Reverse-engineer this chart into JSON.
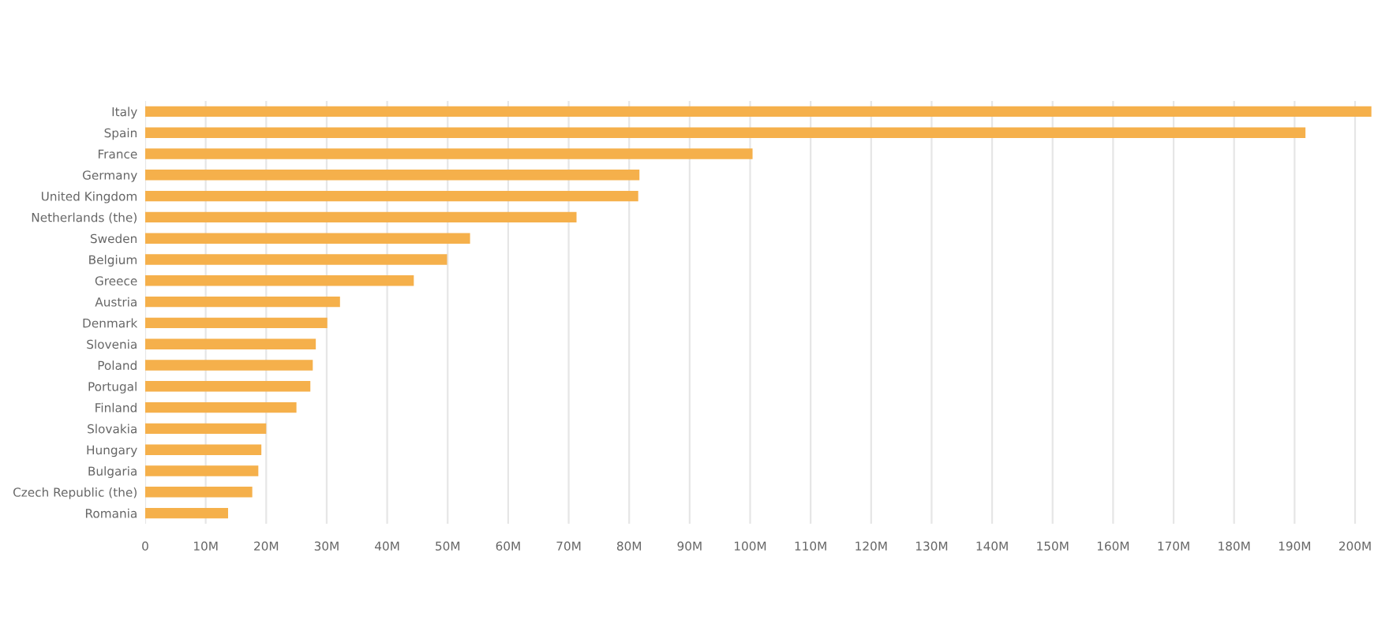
{
  "chart_data": {
    "type": "bar",
    "orientation": "horizontal",
    "categories": [
      "Italy",
      "Spain",
      "France",
      "Germany",
      "United Kingdom",
      "Netherlands (the)",
      "Sweden",
      "Belgium",
      "Greece",
      "Austria",
      "Denmark",
      "Slovenia",
      "Poland",
      "Portugal",
      "Finland",
      "Slovakia",
      "Hungary",
      "Bulgaria",
      "Czech Republic (the)",
      "Romania"
    ],
    "values": [
      202.7,
      191.8,
      100.4,
      81.7,
      81.5,
      71.3,
      53.7,
      49.9,
      44.4,
      32.2,
      30.1,
      28.2,
      27.7,
      27.3,
      25.0,
      20.0,
      19.2,
      18.7,
      17.7,
      13.7
    ],
    "color": "#f5b04b",
    "xlim": [
      0,
      203
    ],
    "xticks": [
      0,
      {
        "value": 10,
        "label": "10M"
      },
      {
        "value": 20,
        "label": "20M"
      },
      {
        "value": 30,
        "label": "30M"
      },
      {
        "value": 40,
        "label": "40M"
      },
      {
        "value": 50,
        "label": "50M"
      },
      {
        "value": 60,
        "label": "60M"
      },
      {
        "value": 70,
        "label": "70M"
      },
      {
        "value": 80,
        "label": "80M"
      },
      {
        "value": 90,
        "label": "90M"
      },
      {
        "value": 100,
        "label": "100M"
      },
      {
        "value": 110,
        "label": "110M"
      },
      {
        "value": 120,
        "label": "120M"
      },
      {
        "value": 130,
        "label": "130M"
      },
      {
        "value": 140,
        "label": "140M"
      },
      {
        "value": 150,
        "label": "150M"
      },
      {
        "value": 160,
        "label": "160M"
      },
      {
        "value": 170,
        "label": "170M"
      },
      {
        "value": 180,
        "label": "180M"
      },
      {
        "value": 190,
        "label": "190M"
      },
      {
        "value": 200,
        "label": "200M"
      }
    ],
    "grid": "x"
  }
}
